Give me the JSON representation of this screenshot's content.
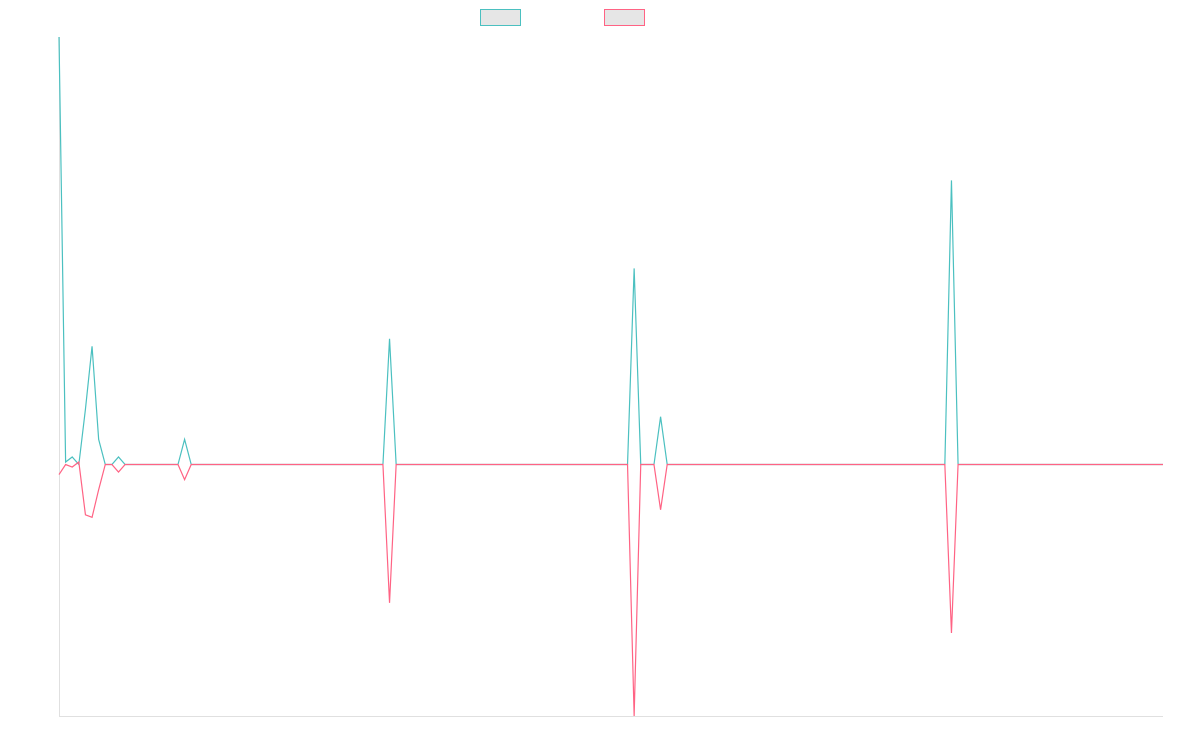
{
  "chart_data": {
    "type": "line",
    "x": [
      0,
      1,
      2,
      3,
      4,
      5,
      6,
      7,
      8,
      9,
      10,
      11,
      12,
      13,
      14,
      15,
      16,
      17,
      18,
      19,
      20,
      21,
      22,
      23,
      24,
      25,
      26,
      27,
      28,
      29,
      30,
      31,
      32,
      33,
      34,
      35,
      36,
      37,
      38,
      39,
      40,
      41,
      42,
      43,
      44,
      45,
      46,
      47,
      48,
      49,
      50,
      51,
      52,
      53,
      54,
      55,
      56,
      57,
      58,
      59,
      60,
      61,
      62,
      63,
      64,
      65,
      66,
      67,
      68,
      69,
      70,
      71,
      72,
      73,
      74,
      75,
      76,
      77,
      78,
      79,
      80,
      81,
      82,
      83,
      84,
      85,
      86,
      87,
      88,
      89,
      90,
      91,
      92,
      93,
      94,
      95,
      96,
      97,
      98,
      99,
      100,
      101,
      102,
      103,
      104,
      105,
      106,
      107,
      108,
      109,
      110,
      111,
      112,
      113,
      114,
      115,
      116,
      117,
      118,
      119,
      120,
      121,
      122,
      123,
      124,
      125,
      126,
      127,
      128,
      129,
      130,
      131,
      132,
      133,
      134,
      135,
      136,
      137,
      138,
      139,
      140,
      141,
      142,
      143,
      144,
      145,
      146,
      147,
      148,
      149,
      150,
      151,
      152,
      153,
      154,
      155,
      156,
      157,
      158,
      159,
      160,
      161,
      162,
      163,
      164,
      165,
      166,
      167
    ],
    "series": [
      {
        "color": "#4bc0c0",
        "values": [
          1.7,
          0.01,
          0.03,
          0,
          0.22,
          0.47,
          0.1,
          0,
          0,
          0.03,
          0,
          0,
          0,
          0,
          0,
          0,
          0,
          0,
          0,
          0.1,
          0,
          0,
          0,
          0,
          0,
          0,
          0,
          0,
          0,
          0,
          0,
          0,
          0,
          0,
          0,
          0,
          0,
          0,
          0,
          0,
          0,
          0,
          0,
          0,
          0,
          0,
          0,
          0,
          0,
          0,
          0.5,
          0,
          0,
          0,
          0,
          0,
          0,
          0,
          0,
          0,
          0,
          0,
          0,
          0,
          0,
          0,
          0,
          0,
          0,
          0,
          0,
          0,
          0,
          0,
          0,
          0,
          0,
          0,
          0,
          0,
          0,
          0,
          0,
          0,
          0,
          0,
          0,
          0.78,
          0,
          0,
          0,
          0.19,
          0,
          0,
          0,
          0,
          0,
          0,
          0,
          0,
          0,
          0,
          0,
          0,
          0,
          0,
          0,
          0,
          0,
          0,
          0,
          0,
          0,
          0,
          0,
          0,
          0,
          0,
          0,
          0,
          0,
          0,
          0,
          0,
          0,
          0,
          0,
          0,
          0,
          0,
          0,
          0,
          0,
          0,
          0,
          1.13,
          0,
          0,
          0,
          0,
          0,
          0,
          0,
          0,
          0,
          0,
          0,
          0,
          0,
          0,
          0,
          0,
          0,
          0,
          0,
          0,
          0,
          0,
          0,
          0,
          0,
          0,
          0,
          0,
          0,
          0,
          0,
          0
        ]
      },
      {
        "color": "#ff6384",
        "values": [
          -0.04,
          0,
          -0.01,
          0.01,
          -0.2,
          -0.21,
          -0.1,
          0,
          0,
          -0.03,
          0,
          0,
          0,
          0,
          0,
          0,
          0,
          0,
          0,
          -0.06,
          0,
          0,
          0,
          0,
          0,
          0,
          0,
          0,
          0,
          0,
          0,
          0,
          0,
          0,
          0,
          0,
          0,
          0,
          0,
          0,
          0,
          0,
          0,
          0,
          0,
          0,
          0,
          0,
          0,
          0,
          -0.55,
          0,
          0,
          0,
          0,
          0,
          0,
          0,
          0,
          0,
          0,
          0,
          0,
          0,
          0,
          0,
          0,
          0,
          0,
          0,
          0,
          0,
          0,
          0,
          0,
          0,
          0,
          0,
          0,
          0,
          0,
          0,
          0,
          0,
          0,
          0,
          0,
          -1,
          0,
          0,
          0,
          -0.18,
          0,
          0,
          0,
          0,
          0,
          0,
          0,
          0,
          0,
          0,
          0,
          0,
          0,
          0,
          0,
          0,
          0,
          0,
          0,
          0,
          0,
          0,
          0,
          0,
          0,
          0,
          0,
          0,
          0,
          0,
          0,
          0,
          0,
          0,
          0,
          0,
          0,
          0,
          0,
          0,
          0,
          0,
          0,
          -0.67,
          0,
          0,
          0,
          0,
          0,
          0,
          0,
          0,
          0,
          0,
          0,
          0,
          0,
          0,
          0,
          0,
          0,
          0,
          0,
          0,
          0,
          0,
          0,
          0,
          0,
          0,
          0,
          0,
          0,
          0,
          0,
          0
        ]
      }
    ],
    "xlim": [
      0,
      167
    ],
    "ylim": [
      -1,
      1.7
    ]
  }
}
